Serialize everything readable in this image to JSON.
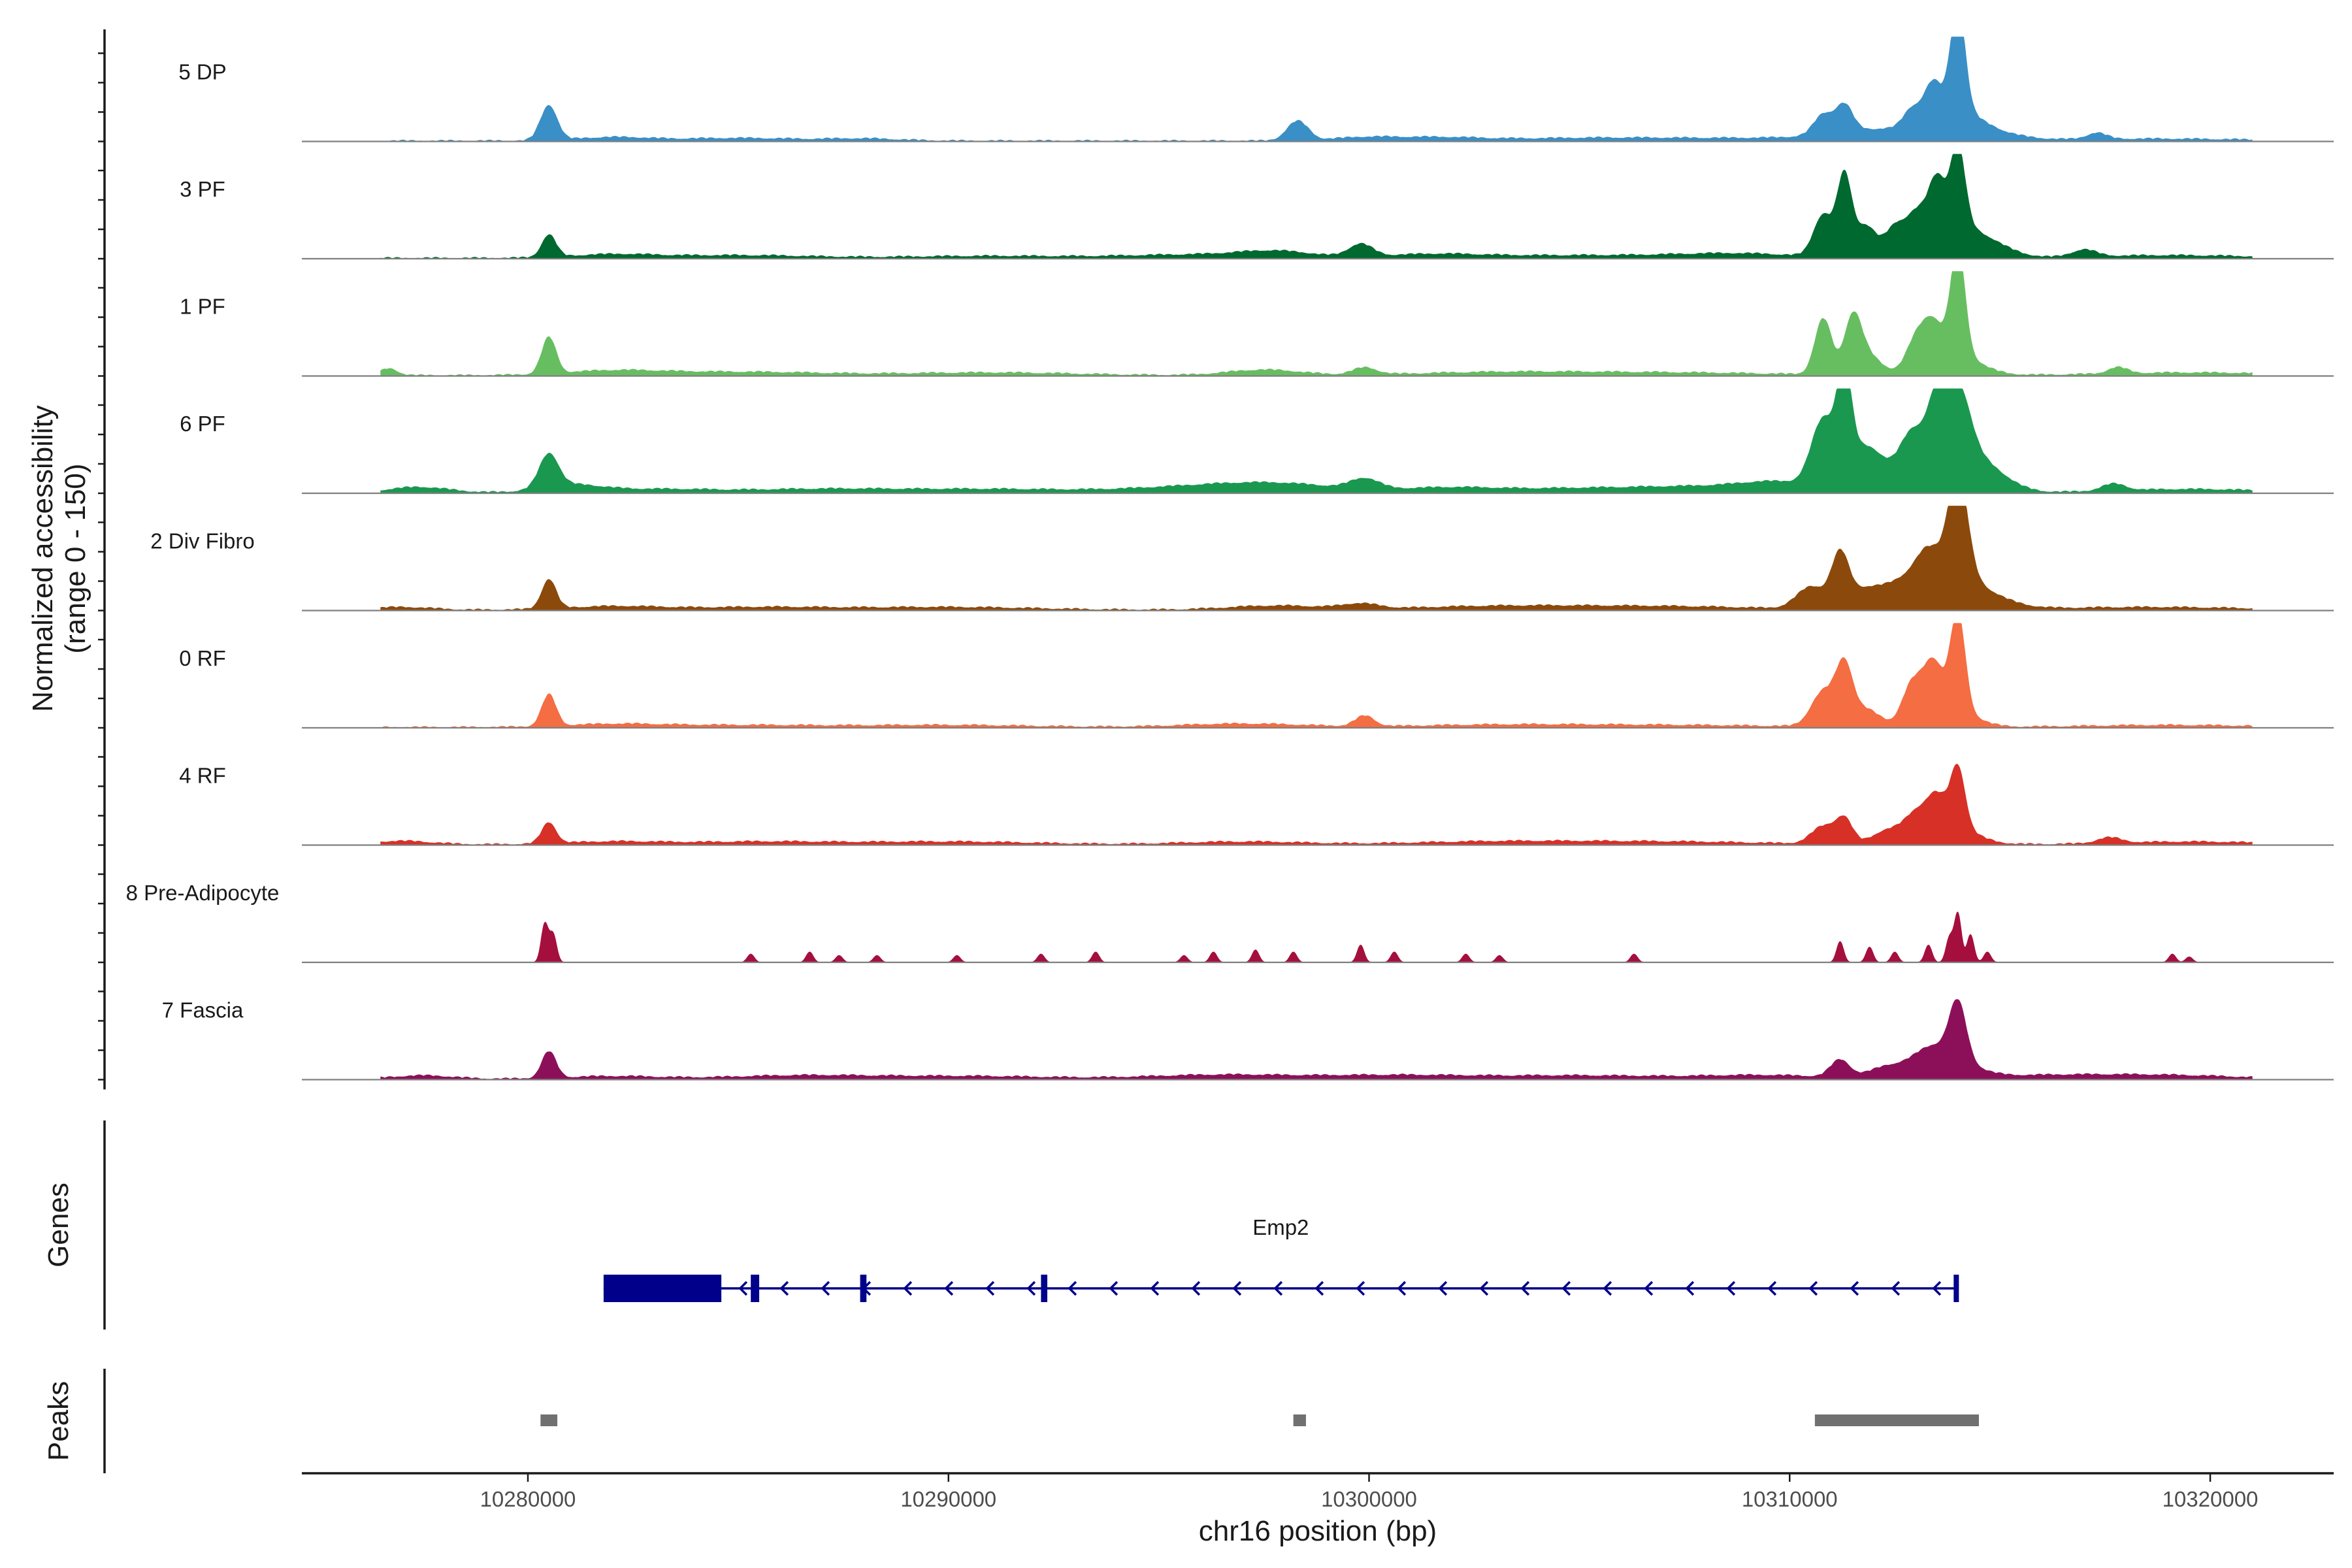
{
  "chart_data": {
    "type": "area",
    "title": "",
    "region": {
      "chrom": "chr16",
      "start": 10274500,
      "end": 10323000
    },
    "xlabel": "chr16 position (bp)",
    "ylabel": "Normalized accessibility",
    "ylabel_range": "(range 0 - 150)",
    "ylim": [
      0,
      150
    ],
    "xticks": [
      10280000,
      10290000,
      10300000,
      10310000,
      10320000
    ],
    "xtick_labels": [
      "10280000",
      "10290000",
      "10300000",
      "10310000",
      "10320000"
    ],
    "tracks": [
      {
        "name": "5 DP",
        "color": "#3A8FC7",
        "peaks": [
          [
            10280500,
            7,
            50
          ],
          [
            10282000,
            30,
            5
          ],
          [
            10285000,
            50,
            4
          ],
          [
            10288000,
            30,
            3
          ],
          [
            10298300,
            9,
            28
          ],
          [
            10299800,
            25,
            4
          ],
          [
            10301500,
            40,
            5
          ],
          [
            10305000,
            60,
            3
          ],
          [
            10309200,
            100,
            4
          ],
          [
            10310800,
            8,
            28
          ],
          [
            10311300,
            7,
            38
          ],
          [
            10312000,
            35,
            14
          ],
          [
            10312900,
            7,
            22
          ],
          [
            10313400,
            7,
            45
          ],
          [
            10314000,
            6,
            150
          ],
          [
            10313800,
            22,
            40
          ],
          [
            10314700,
            25,
            10
          ],
          [
            10317300,
            8,
            9
          ],
          [
            10318500,
            80,
            3
          ]
        ]
      },
      {
        "name": "3 PF",
        "color": "#00692F",
        "peaks": [
          [
            10280500,
            6,
            32
          ],
          [
            10282000,
            35,
            5
          ],
          [
            10285000,
            60,
            4
          ],
          [
            10291000,
            70,
            3
          ],
          [
            10296000,
            60,
            5
          ],
          [
            10297800,
            30,
            8
          ],
          [
            10299800,
            10,
            18
          ],
          [
            10301500,
            40,
            5
          ],
          [
            10305000,
            80,
            4
          ],
          [
            10308800,
            50,
            6
          ],
          [
            10310800,
            8,
            60
          ],
          [
            10311300,
            6,
            112
          ],
          [
            10311800,
            9,
            45
          ],
          [
            10312500,
            8,
            35
          ],
          [
            10313000,
            8,
            38
          ],
          [
            10313500,
            7,
            72
          ],
          [
            10314000,
            6,
            115
          ],
          [
            10313700,
            25,
            45
          ],
          [
            10314700,
            20,
            15
          ],
          [
            10317000,
            10,
            10
          ],
          [
            10319000,
            70,
            4
          ]
        ]
      },
      {
        "name": "1 PF",
        "color": "#67BE61",
        "peaks": [
          [
            10276700,
            7,
            10
          ],
          [
            10280500,
            6,
            52
          ],
          [
            10282000,
            40,
            6
          ],
          [
            10285000,
            70,
            5
          ],
          [
            10291000,
            70,
            4
          ],
          [
            10297500,
            30,
            8
          ],
          [
            10299900,
            10,
            10
          ],
          [
            10303000,
            70,
            4
          ],
          [
            10307000,
            90,
            4
          ],
          [
            10310800,
            7,
            80
          ],
          [
            10311500,
            7,
            70
          ],
          [
            10311800,
            12,
            30
          ],
          [
            10313000,
            8,
            38
          ],
          [
            10313400,
            8,
            48
          ],
          [
            10314000,
            6,
            150
          ],
          [
            10313800,
            22,
            35
          ],
          [
            10317800,
            8,
            9
          ],
          [
            10319500,
            70,
            4
          ]
        ]
      },
      {
        "name": "6 PF",
        "color": "#1A9850",
        "peaks": [
          [
            10277400,
            25,
            8
          ],
          [
            10280500,
            8,
            48
          ],
          [
            10281000,
            25,
            10
          ],
          [
            10283000,
            50,
            5
          ],
          [
            10287000,
            60,
            5
          ],
          [
            10291000,
            70,
            5
          ],
          [
            10296000,
            60,
            8
          ],
          [
            10298000,
            50,
            10
          ],
          [
            10299900,
            12,
            15
          ],
          [
            10301800,
            40,
            6
          ],
          [
            10305000,
            70,
            6
          ],
          [
            10308500,
            60,
            8
          ],
          [
            10309800,
            30,
            10
          ],
          [
            10310800,
            10,
            95
          ],
          [
            10311300,
            6,
            135
          ],
          [
            10311800,
            15,
            60
          ],
          [
            10312900,
            10,
            55
          ],
          [
            10313500,
            8,
            85
          ],
          [
            10314000,
            10,
            100
          ],
          [
            10313600,
            30,
            45
          ],
          [
            10314600,
            20,
            25
          ],
          [
            10317700,
            10,
            10
          ],
          [
            10319500,
            60,
            5
          ]
        ]
      },
      {
        "name": "2 Div Fibro",
        "color": "#8B4A0B",
        "peaks": [
          [
            10277000,
            25,
            4
          ],
          [
            10280500,
            6,
            42
          ],
          [
            10282000,
            40,
            5
          ],
          [
            10285500,
            60,
            4
          ],
          [
            10290000,
            70,
            4
          ],
          [
            10297800,
            40,
            6
          ],
          [
            10299800,
            15,
            7
          ],
          [
            10303000,
            70,
            5
          ],
          [
            10307000,
            80,
            5
          ],
          [
            10310500,
            12,
            30
          ],
          [
            10311200,
            7,
            65
          ],
          [
            10311800,
            20,
            30
          ],
          [
            10312800,
            15,
            25
          ],
          [
            10313300,
            10,
            40
          ],
          [
            10314000,
            8,
            150
          ],
          [
            10313800,
            25,
            45
          ],
          [
            10314700,
            25,
            10
          ],
          [
            10318500,
            80,
            4
          ]
        ]
      },
      {
        "name": "0 RF",
        "color": "#F46D43",
        "peaks": [
          [
            10280500,
            6,
            45
          ],
          [
            10282000,
            40,
            4
          ],
          [
            10285000,
            70,
            3
          ],
          [
            10290000,
            70,
            3
          ],
          [
            10297000,
            50,
            5
          ],
          [
            10299900,
            8,
            15
          ],
          [
            10303000,
            70,
            3
          ],
          [
            10307000,
            90,
            3
          ],
          [
            10310800,
            10,
            50
          ],
          [
            10311300,
            7,
            80
          ],
          [
            10311800,
            12,
            25
          ],
          [
            10312900,
            8,
            50
          ],
          [
            10313400,
            8,
            65
          ],
          [
            10314000,
            6,
            135
          ],
          [
            10313700,
            20,
            35
          ],
          [
            10319000,
            70,
            3
          ]
        ]
      },
      {
        "name": "4 RF",
        "color": "#D73027",
        "peaks": [
          [
            10277000,
            25,
            5
          ],
          [
            10280500,
            6,
            30
          ],
          [
            10282000,
            40,
            4
          ],
          [
            10285500,
            60,
            4
          ],
          [
            10290000,
            70,
            4
          ],
          [
            10297000,
            50,
            4
          ],
          [
            10303000,
            70,
            4
          ],
          [
            10307000,
            80,
            4
          ],
          [
            10310800,
            10,
            25
          ],
          [
            10311300,
            7,
            35
          ],
          [
            10312300,
            12,
            18
          ],
          [
            10313000,
            10,
            30
          ],
          [
            10313500,
            8,
            40
          ],
          [
            10314000,
            6,
            85
          ],
          [
            10313700,
            22,
            30
          ],
          [
            10317600,
            10,
            8
          ],
          [
            10319500,
            60,
            4
          ]
        ]
      },
      {
        "name": "8 Pre-Adipocyte",
        "color": "#A50F3E",
        "peaks": [
          [
            10280400,
            3,
            55
          ],
          [
            10280600,
            3,
            40
          ],
          [
            10285300,
            3,
            12
          ],
          [
            10286700,
            3,
            15
          ],
          [
            10287400,
            3,
            10
          ],
          [
            10288300,
            3,
            10
          ],
          [
            10290200,
            3,
            10
          ],
          [
            10292200,
            3,
            12
          ],
          [
            10293500,
            3,
            15
          ],
          [
            10295600,
            3,
            10
          ],
          [
            10296300,
            3,
            15
          ],
          [
            10297300,
            3,
            18
          ],
          [
            10298200,
            3,
            15
          ],
          [
            10299800,
            3,
            25
          ],
          [
            10300600,
            3,
            15
          ],
          [
            10302300,
            3,
            12
          ],
          [
            10303100,
            3,
            10
          ],
          [
            10306300,
            3,
            12
          ],
          [
            10311200,
            3,
            30
          ],
          [
            10311900,
            3,
            22
          ],
          [
            10312500,
            3,
            15
          ],
          [
            10313300,
            3,
            25
          ],
          [
            10313800,
            3,
            35
          ],
          [
            10314000,
            3,
            70
          ],
          [
            10314300,
            3,
            40
          ],
          [
            10314700,
            3,
            15
          ],
          [
            10319100,
            3,
            12
          ],
          [
            10319500,
            3,
            8
          ]
        ]
      },
      {
        "name": "7 Fascia",
        "color": "#8C1059",
        "peaks": [
          [
            10277500,
            25,
            5
          ],
          [
            10280500,
            6,
            38
          ],
          [
            10282000,
            40,
            4
          ],
          [
            10286500,
            60,
            5
          ],
          [
            10290500,
            70,
            4
          ],
          [
            10296500,
            60,
            6
          ],
          [
            10300500,
            60,
            5
          ],
          [
            10305000,
            80,
            5
          ],
          [
            10309500,
            50,
            5
          ],
          [
            10311200,
            8,
            25
          ],
          [
            10312300,
            15,
            15
          ],
          [
            10313300,
            15,
            20
          ],
          [
            10314000,
            7,
            80
          ],
          [
            10313700,
            22,
            30
          ],
          [
            10316000,
            60,
            5
          ],
          [
            10319000,
            60,
            5
          ]
        ]
      }
    ],
    "genes": [
      {
        "name": "Emp2",
        "strand": "-",
        "start": 10281800,
        "end": 10314000,
        "exons": [
          [
            10281800,
            10284600
          ],
          [
            10285300,
            10285500
          ],
          [
            10287900,
            10288050
          ],
          [
            10292200,
            10292350
          ],
          [
            10313900,
            10314000
          ]
        ]
      }
    ],
    "peak_regions": [
      [
        10280300,
        10280700
      ],
      [
        10298200,
        10298500
      ],
      [
        10310600,
        10314500
      ]
    ],
    "panel_labels": {
      "genes": "Genes",
      "peaks": "Peaks"
    }
  }
}
